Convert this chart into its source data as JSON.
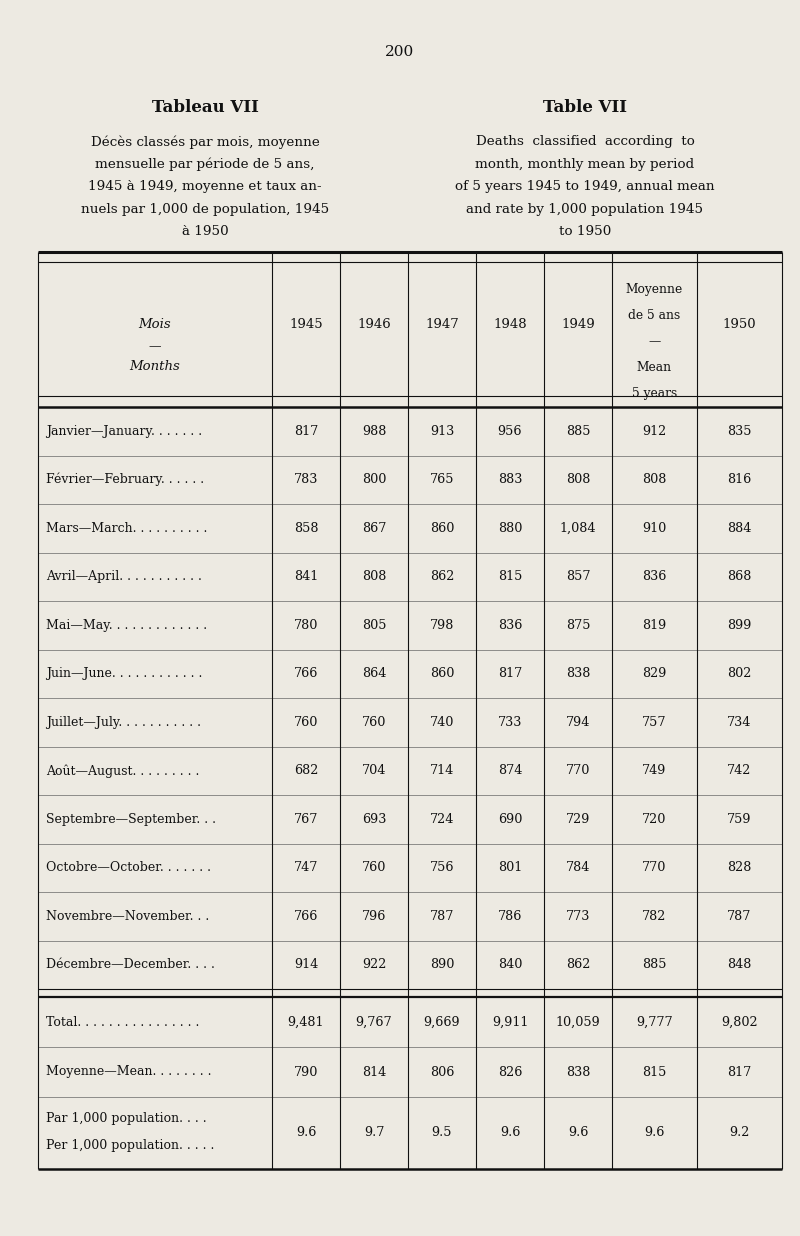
{
  "page_number": "200",
  "title_left": "Tableau VII",
  "title_right": "Table VII",
  "subtitle_left_lines": [
    "Décès classés par mois, moyenne",
    "mensuelle par période de 5 ans,",
    "1945 à 1949, moyenne et taux an-",
    "nuels par 1,000 de population, 1945",
    "à 1950"
  ],
  "subtitle_right_lines": [
    "Deaths  classified  according  to",
    "month, monthly mean by period",
    "of 5 years 1945 to 1949, annual mean",
    "and rate by 1,000 population 1945",
    "to 1950"
  ],
  "rows": [
    [
      "Janvier—January. . . . . . .",
      "817",
      "988",
      "913",
      "956",
      "885",
      "912",
      "835"
    ],
    [
      "Février—February. . . . . .",
      "783",
      "800",
      "765",
      "883",
      "808",
      "808",
      "816"
    ],
    [
      "Mars—March. . . . . . . . . .",
      "858",
      "867",
      "860",
      "880",
      "1,084",
      "910",
      "884"
    ],
    [
      "Avril—April. . . . . . . . . . .",
      "841",
      "808",
      "862",
      "815",
      "857",
      "836",
      "868"
    ],
    [
      "Mai—May. . . . . . . . . . . . .",
      "780",
      "805",
      "798",
      "836",
      "875",
      "819",
      "899"
    ],
    [
      "Juin—June. . . . . . . . . . . .",
      "766",
      "864",
      "860",
      "817",
      "838",
      "829",
      "802"
    ],
    [
      "Juillet—July. . . . . . . . . . .",
      "760",
      "760",
      "740",
      "733",
      "794",
      "757",
      "734"
    ],
    [
      "Août—August. . . . . . . . .",
      "682",
      "704",
      "714",
      "874",
      "770",
      "749",
      "742"
    ],
    [
      "Septembre—September. . .",
      "767",
      "693",
      "724",
      "690",
      "729",
      "720",
      "759"
    ],
    [
      "Octobre—October. . . . . . .",
      "747",
      "760",
      "756",
      "801",
      "784",
      "770",
      "828"
    ],
    [
      "Novembre—November. . .",
      "766",
      "796",
      "787",
      "786",
      "773",
      "782",
      "787"
    ],
    [
      "Décembre—December. . . .",
      "914",
      "922",
      "890",
      "840",
      "862",
      "885",
      "848"
    ]
  ],
  "footer_rows": [
    [
      "Total. . . . . . . . . . . . . . . .",
      "9,481",
      "9,767",
      "9,669",
      "9,911",
      "10,059",
      "9,777",
      "9,802"
    ],
    [
      "Moyenne—Mean. . . . . . . .",
      "790",
      "814",
      "806",
      "826",
      "838",
      "815",
      "817"
    ],
    [
      "Par 1,000 population. . . .\nPer 1,000 population. . . . .",
      "9.6",
      "9.7",
      "9.5",
      "9.6",
      "9.6",
      "9.6",
      "9.2"
    ]
  ],
  "bg_color": "#edeae2",
  "text_color": "#111111",
  "font_family": "serif",
  "fig_width": 8.0,
  "fig_height": 12.36
}
